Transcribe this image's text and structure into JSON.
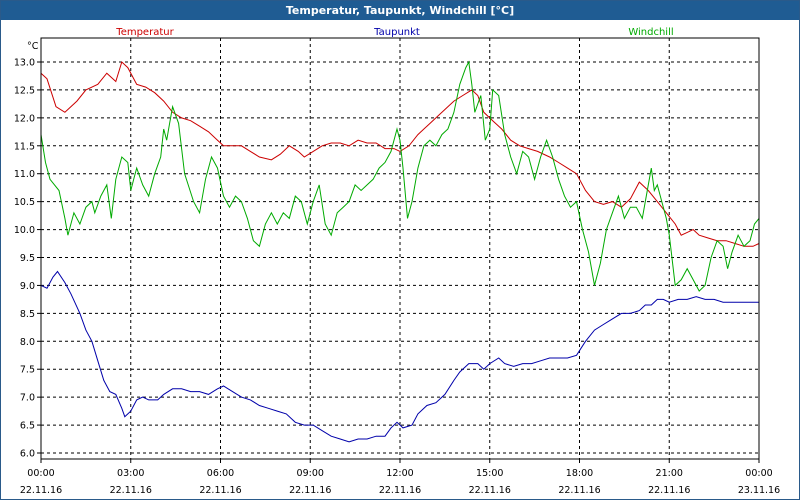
{
  "window": {
    "title": "Temperatur, Taupunkt, Windchill [°C]"
  },
  "chart_data": {
    "type": "line",
    "title": "Temperatur, Taupunkt, Windchill [°C]",
    "ylabel": "°C",
    "ylim": [
      6.0,
      13.0
    ],
    "xlim_hours": [
      0,
      24
    ],
    "grid": true,
    "legend_position": "top",
    "y_ticks": [
      "13.0",
      "12.5",
      "12.0",
      "11.5",
      "11.0",
      "10.5",
      "10.0",
      "9.5",
      "9.0",
      "8.5",
      "8.0",
      "7.5",
      "7.0",
      "6.5",
      "6.0"
    ],
    "x_ticks": [
      {
        "time": "00:00",
        "date": "22.11.16"
      },
      {
        "time": "03:00",
        "date": "22.11.16"
      },
      {
        "time": "06:00",
        "date": "22.11.16"
      },
      {
        "time": "09:00",
        "date": "22.11.16"
      },
      {
        "time": "12:00",
        "date": "22.11.16"
      },
      {
        "time": "15:00",
        "date": "22.11.16"
      },
      {
        "time": "18:00",
        "date": "22.11.16"
      },
      {
        "time": "21:00",
        "date": "22.11.16"
      },
      {
        "time": "00:00",
        "date": "23.11.16"
      }
    ],
    "series": [
      {
        "name": "Temperatur",
        "color": "#cc0000",
        "points": [
          [
            0,
            12.8
          ],
          [
            0.2,
            12.7
          ],
          [
            0.5,
            12.2
          ],
          [
            0.8,
            12.1
          ],
          [
            1.2,
            12.3
          ],
          [
            1.5,
            12.5
          ],
          [
            1.9,
            12.6
          ],
          [
            2.2,
            12.8
          ],
          [
            2.5,
            12.65
          ],
          [
            2.7,
            13.0
          ],
          [
            2.9,
            12.9
          ],
          [
            3.2,
            12.6
          ],
          [
            3.5,
            12.55
          ],
          [
            3.8,
            12.45
          ],
          [
            4.1,
            12.3
          ],
          [
            4.4,
            12.1
          ],
          [
            4.7,
            12.0
          ],
          [
            5.0,
            11.95
          ],
          [
            5.3,
            11.85
          ],
          [
            5.6,
            11.75
          ],
          [
            5.9,
            11.6
          ],
          [
            6.1,
            11.5
          ],
          [
            6.3,
            11.5
          ],
          [
            6.7,
            11.5
          ],
          [
            7.0,
            11.4
          ],
          [
            7.3,
            11.3
          ],
          [
            7.7,
            11.25
          ],
          [
            8.0,
            11.35
          ],
          [
            8.3,
            11.5
          ],
          [
            8.6,
            11.4
          ],
          [
            8.8,
            11.3
          ],
          [
            9.1,
            11.4
          ],
          [
            9.4,
            11.5
          ],
          [
            9.7,
            11.55
          ],
          [
            10.0,
            11.55
          ],
          [
            10.3,
            11.5
          ],
          [
            10.6,
            11.6
          ],
          [
            10.9,
            11.55
          ],
          [
            11.2,
            11.55
          ],
          [
            11.5,
            11.45
          ],
          [
            11.8,
            11.45
          ],
          [
            12.0,
            11.4
          ],
          [
            12.3,
            11.5
          ],
          [
            12.6,
            11.7
          ],
          [
            12.9,
            11.85
          ],
          [
            13.2,
            12.0
          ],
          [
            13.5,
            12.15
          ],
          [
            13.8,
            12.3
          ],
          [
            14.1,
            12.4
          ],
          [
            14.4,
            12.5
          ],
          [
            14.6,
            12.4
          ],
          [
            14.8,
            12.1
          ],
          [
            15.1,
            11.95
          ],
          [
            15.4,
            11.8
          ],
          [
            15.7,
            11.6
          ],
          [
            16.0,
            11.5
          ],
          [
            16.3,
            11.45
          ],
          [
            16.6,
            11.4
          ],
          [
            17.0,
            11.3
          ],
          [
            17.3,
            11.2
          ],
          [
            17.6,
            11.1
          ],
          [
            17.9,
            11.0
          ],
          [
            18.2,
            10.7
          ],
          [
            18.5,
            10.5
          ],
          [
            18.8,
            10.45
          ],
          [
            19.1,
            10.5
          ],
          [
            19.4,
            10.4
          ],
          [
            19.7,
            10.55
          ],
          [
            20.0,
            10.85
          ],
          [
            20.3,
            10.7
          ],
          [
            20.6,
            10.5
          ],
          [
            20.9,
            10.3
          ],
          [
            21.2,
            10.1
          ],
          [
            21.4,
            9.9
          ],
          [
            21.6,
            9.95
          ],
          [
            21.8,
            10.0
          ],
          [
            22.0,
            9.9
          ],
          [
            22.3,
            9.85
          ],
          [
            22.6,
            9.8
          ],
          [
            22.9,
            9.8
          ],
          [
            23.2,
            9.75
          ],
          [
            23.5,
            9.7
          ],
          [
            23.8,
            9.7
          ],
          [
            24.0,
            9.75
          ]
        ]
      },
      {
        "name": "Taupunkt",
        "color": "#0000aa",
        "points": [
          [
            0,
            9.0
          ],
          [
            0.2,
            8.95
          ],
          [
            0.4,
            9.15
          ],
          [
            0.55,
            9.25
          ],
          [
            0.8,
            9.05
          ],
          [
            1.0,
            8.85
          ],
          [
            1.3,
            8.5
          ],
          [
            1.5,
            8.2
          ],
          [
            1.7,
            8.0
          ],
          [
            1.9,
            7.65
          ],
          [
            2.1,
            7.3
          ],
          [
            2.3,
            7.1
          ],
          [
            2.5,
            7.05
          ],
          [
            2.7,
            6.8
          ],
          [
            2.8,
            6.65
          ],
          [
            3.0,
            6.75
          ],
          [
            3.2,
            6.95
          ],
          [
            3.4,
            7.0
          ],
          [
            3.6,
            6.95
          ],
          [
            3.9,
            6.95
          ],
          [
            4.1,
            7.05
          ],
          [
            4.4,
            7.15
          ],
          [
            4.7,
            7.15
          ],
          [
            5.0,
            7.1
          ],
          [
            5.3,
            7.1
          ],
          [
            5.6,
            7.05
          ],
          [
            5.9,
            7.15
          ],
          [
            6.1,
            7.2
          ],
          [
            6.4,
            7.1
          ],
          [
            6.7,
            7.0
          ],
          [
            7.0,
            6.95
          ],
          [
            7.3,
            6.85
          ],
          [
            7.6,
            6.8
          ],
          [
            7.9,
            6.75
          ],
          [
            8.2,
            6.7
          ],
          [
            8.5,
            6.55
          ],
          [
            8.8,
            6.5
          ],
          [
            9.1,
            6.5
          ],
          [
            9.4,
            6.4
          ],
          [
            9.7,
            6.3
          ],
          [
            10.0,
            6.25
          ],
          [
            10.3,
            6.2
          ],
          [
            10.6,
            6.25
          ],
          [
            10.9,
            6.25
          ],
          [
            11.2,
            6.3
          ],
          [
            11.5,
            6.3
          ],
          [
            11.7,
            6.45
          ],
          [
            11.9,
            6.55
          ],
          [
            12.1,
            6.45
          ],
          [
            12.4,
            6.5
          ],
          [
            12.6,
            6.7
          ],
          [
            12.9,
            6.85
          ],
          [
            13.2,
            6.9
          ],
          [
            13.5,
            7.05
          ],
          [
            13.8,
            7.3
          ],
          [
            14.0,
            7.45
          ],
          [
            14.3,
            7.6
          ],
          [
            14.6,
            7.6
          ],
          [
            14.8,
            7.5
          ],
          [
            15.0,
            7.6
          ],
          [
            15.3,
            7.7
          ],
          [
            15.5,
            7.6
          ],
          [
            15.8,
            7.55
          ],
          [
            16.1,
            7.6
          ],
          [
            16.4,
            7.6
          ],
          [
            16.7,
            7.65
          ],
          [
            17.0,
            7.7
          ],
          [
            17.3,
            7.7
          ],
          [
            17.6,
            7.7
          ],
          [
            17.9,
            7.75
          ],
          [
            18.2,
            8.0
          ],
          [
            18.5,
            8.2
          ],
          [
            18.8,
            8.3
          ],
          [
            19.1,
            8.4
          ],
          [
            19.4,
            8.5
          ],
          [
            19.7,
            8.5
          ],
          [
            20.0,
            8.55
          ],
          [
            20.2,
            8.65
          ],
          [
            20.4,
            8.65
          ],
          [
            20.6,
            8.75
          ],
          [
            20.8,
            8.75
          ],
          [
            21.0,
            8.7
          ],
          [
            21.3,
            8.75
          ],
          [
            21.6,
            8.75
          ],
          [
            21.9,
            8.8
          ],
          [
            22.2,
            8.75
          ],
          [
            22.5,
            8.75
          ],
          [
            22.8,
            8.7
          ],
          [
            23.1,
            8.7
          ],
          [
            23.4,
            8.7
          ],
          [
            23.7,
            8.7
          ],
          [
            24.0,
            8.7
          ]
        ]
      },
      {
        "name": "Windchill",
        "color": "#00aa00",
        "points": [
          [
            0,
            11.7
          ],
          [
            0.15,
            11.2
          ],
          [
            0.3,
            10.9
          ],
          [
            0.6,
            10.7
          ],
          [
            0.8,
            10.2
          ],
          [
            0.9,
            9.9
          ],
          [
            1.1,
            10.3
          ],
          [
            1.3,
            10.1
          ],
          [
            1.5,
            10.4
          ],
          [
            1.7,
            10.5
          ],
          [
            1.8,
            10.3
          ],
          [
            2.0,
            10.6
          ],
          [
            2.2,
            10.8
          ],
          [
            2.35,
            10.2
          ],
          [
            2.5,
            10.9
          ],
          [
            2.7,
            11.3
          ],
          [
            2.9,
            11.2
          ],
          [
            3.0,
            10.7
          ],
          [
            3.1,
            10.9
          ],
          [
            3.2,
            11.1
          ],
          [
            3.4,
            10.8
          ],
          [
            3.6,
            10.6
          ],
          [
            3.8,
            11.0
          ],
          [
            4.0,
            11.3
          ],
          [
            4.1,
            11.8
          ],
          [
            4.2,
            11.6
          ],
          [
            4.3,
            11.9
          ],
          [
            4.4,
            12.2
          ],
          [
            4.6,
            11.9
          ],
          [
            4.8,
            11.0
          ],
          [
            5.1,
            10.5
          ],
          [
            5.3,
            10.3
          ],
          [
            5.5,
            10.9
          ],
          [
            5.7,
            11.3
          ],
          [
            5.9,
            11.1
          ],
          [
            6.1,
            10.6
          ],
          [
            6.3,
            10.4
          ],
          [
            6.5,
            10.6
          ],
          [
            6.7,
            10.5
          ],
          [
            6.9,
            10.2
          ],
          [
            7.1,
            9.8
          ],
          [
            7.3,
            9.7
          ],
          [
            7.5,
            10.1
          ],
          [
            7.7,
            10.3
          ],
          [
            7.9,
            10.1
          ],
          [
            8.1,
            10.3
          ],
          [
            8.3,
            10.2
          ],
          [
            8.5,
            10.6
          ],
          [
            8.7,
            10.5
          ],
          [
            8.9,
            10.1
          ],
          [
            9.1,
            10.5
          ],
          [
            9.3,
            10.8
          ],
          [
            9.5,
            10.1
          ],
          [
            9.7,
            9.9
          ],
          [
            9.9,
            10.3
          ],
          [
            10.1,
            10.4
          ],
          [
            10.3,
            10.5
          ],
          [
            10.5,
            10.8
          ],
          [
            10.7,
            10.7
          ],
          [
            10.9,
            10.8
          ],
          [
            11.1,
            10.9
          ],
          [
            11.3,
            11.1
          ],
          [
            11.5,
            11.2
          ],
          [
            11.7,
            11.4
          ],
          [
            11.9,
            11.8
          ],
          [
            12.0,
            11.6
          ],
          [
            12.1,
            11.1
          ],
          [
            12.25,
            10.2
          ],
          [
            12.4,
            10.5
          ],
          [
            12.6,
            11.1
          ],
          [
            12.8,
            11.5
          ],
          [
            13.0,
            11.6
          ],
          [
            13.2,
            11.5
          ],
          [
            13.4,
            11.7
          ],
          [
            13.6,
            11.8
          ],
          [
            13.8,
            12.1
          ],
          [
            14.0,
            12.6
          ],
          [
            14.2,
            12.9
          ],
          [
            14.3,
            13.0
          ],
          [
            14.4,
            12.6
          ],
          [
            14.5,
            12.1
          ],
          [
            14.7,
            12.4
          ],
          [
            14.85,
            11.6
          ],
          [
            15.0,
            11.8
          ],
          [
            15.1,
            12.5
          ],
          [
            15.3,
            12.4
          ],
          [
            15.5,
            11.7
          ],
          [
            15.7,
            11.3
          ],
          [
            15.9,
            11.0
          ],
          [
            16.1,
            11.4
          ],
          [
            16.3,
            11.3
          ],
          [
            16.5,
            10.9
          ],
          [
            16.7,
            11.3
          ],
          [
            16.9,
            11.6
          ],
          [
            17.1,
            11.3
          ],
          [
            17.3,
            10.9
          ],
          [
            17.5,
            10.6
          ],
          [
            17.7,
            10.4
          ],
          [
            17.9,
            10.5
          ],
          [
            18.1,
            10.0
          ],
          [
            18.3,
            9.6
          ],
          [
            18.5,
            9.0
          ],
          [
            18.7,
            9.4
          ],
          [
            18.9,
            10.0
          ],
          [
            19.1,
            10.3
          ],
          [
            19.3,
            10.6
          ],
          [
            19.5,
            10.2
          ],
          [
            19.7,
            10.4
          ],
          [
            19.9,
            10.4
          ],
          [
            20.1,
            10.2
          ],
          [
            20.3,
            10.8
          ],
          [
            20.4,
            11.1
          ],
          [
            20.5,
            10.7
          ],
          [
            20.6,
            10.8
          ],
          [
            20.75,
            10.5
          ],
          [
            20.9,
            10.2
          ],
          [
            21.0,
            9.9
          ],
          [
            21.2,
            9.0
          ],
          [
            21.4,
            9.1
          ],
          [
            21.6,
            9.3
          ],
          [
            21.8,
            9.1
          ],
          [
            22.0,
            8.9
          ],
          [
            22.2,
            9.0
          ],
          [
            22.4,
            9.5
          ],
          [
            22.6,
            9.8
          ],
          [
            22.8,
            9.7
          ],
          [
            22.95,
            9.3
          ],
          [
            23.1,
            9.6
          ],
          [
            23.3,
            9.9
          ],
          [
            23.5,
            9.7
          ],
          [
            23.7,
            9.8
          ],
          [
            23.85,
            10.1
          ],
          [
            24.0,
            10.2
          ]
        ]
      }
    ]
  }
}
